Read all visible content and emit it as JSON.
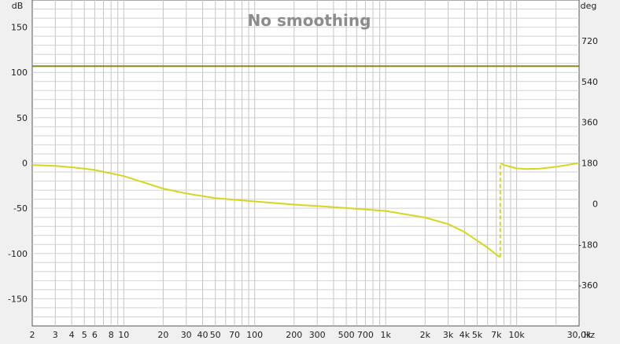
{
  "chart_data": {
    "type": "line",
    "title": "No smoothing",
    "x_scale": "log",
    "xlim": [
      2,
      30000
    ],
    "ylim_left": [
      -180,
      180
    ],
    "ylim_right": [
      -540,
      900
    ],
    "left_unit": "dB",
    "right_unit": "deg",
    "x_unit": "Hz",
    "grid": true,
    "x_ticks": [
      2,
      3,
      4,
      5,
      6,
      8,
      10,
      20,
      30,
      40,
      50,
      70,
      100,
      200,
      300,
      500,
      700,
      1000,
      2000,
      3000,
      4000,
      5000,
      7000,
      10000,
      30000
    ],
    "x_tick_labels": [
      "2",
      "3",
      "4",
      "5",
      "6",
      "8",
      "10",
      "20",
      "30",
      "40",
      "50",
      "70",
      "100",
      "200",
      "300",
      "500",
      "700",
      "1k",
      "2k",
      "3k",
      "4k",
      "5k",
      "7k",
      "10k",
      "30,0k"
    ],
    "y_ticks_left": [
      -150,
      -100,
      -50,
      0,
      50,
      100,
      150
    ],
    "y_tick_labels_left": [
      "-150",
      "-100",
      "-50",
      "0",
      "50",
      "100",
      "150"
    ],
    "y_ticks_right": [
      -360,
      -180,
      0,
      180,
      360,
      540,
      720
    ],
    "y_tick_labels_right": [
      "-360",
      "-180",
      "0",
      "180",
      "360",
      "540",
      "720"
    ],
    "series": [
      {
        "axis": "left",
        "color": "#8a8a1a",
        "x": [
          2,
          30000
        ],
        "y": [
          107,
          107
        ]
      },
      {
        "axis": "right",
        "color": "#d6d61e",
        "x": [
          2,
          3,
          4,
          5,
          6,
          8,
          10,
          20,
          30,
          50,
          100,
          200,
          300,
          500,
          1000,
          2000,
          3000,
          4000,
          5000,
          6000,
          7000,
          7500
        ],
        "y": [
          171,
          167,
          161,
          155,
          149,
          134,
          122,
          67,
          45,
          25,
          10,
          -4,
          -10,
          -19,
          -32,
          -61,
          -90,
          -125,
          -163,
          -194,
          -225,
          -236
        ]
      },
      {
        "axis": "right",
        "color": "#d6d61e",
        "x": [
          7500,
          8000,
          10000,
          12000,
          15000,
          20000,
          25000,
          30000
        ],
        "y": [
          180,
          171,
          156,
          153,
          155,
          163,
          172,
          180
        ]
      },
      {
        "axis": "right",
        "color": "#d6d61e",
        "dashed": true,
        "x": [
          7500,
          7500
        ],
        "y": [
          -236,
          180
        ]
      }
    ]
  }
}
